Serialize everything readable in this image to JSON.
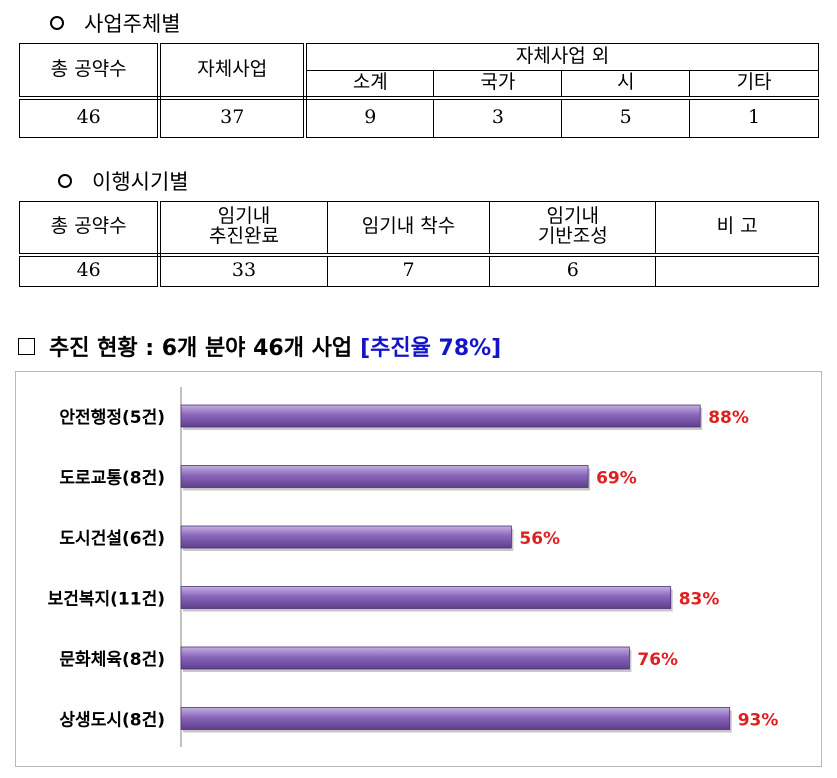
{
  "section_by_entity": {
    "heading": "사업주체별",
    "headers": {
      "total": "총 공약수",
      "own": "자체사업",
      "other_group": "자체사업 외",
      "subtotal": "소계",
      "national": "국가",
      "city": "시",
      "etc": "기타"
    },
    "values": {
      "total": "46",
      "own": "37",
      "subtotal": "9",
      "national": "3",
      "city": "5",
      "etc": "1"
    }
  },
  "section_by_timing": {
    "heading": "이행시기별",
    "headers": {
      "total": "총 공약수",
      "done_line1": "임기내",
      "done_line2": "추진완료",
      "started": "임기내 착수",
      "base_line1": "임기내",
      "base_line2": "기반조성",
      "note": "비  고"
    },
    "values": {
      "total": "46",
      "done": "33",
      "started": "7",
      "base": "6",
      "note": ""
    }
  },
  "progress": {
    "title": "추진 현황 : 6개 분야 46개 사업",
    "rate": "[추진율 78%]"
  },
  "chart_data": {
    "type": "bar",
    "orientation": "horizontal",
    "categories": [
      "안전행정(5건)",
      "도로교통(8건)",
      "도시건설(6건)",
      "보건복지(11건)",
      "문화체육(8건)",
      "상생도시(8건)"
    ],
    "values": [
      88,
      69,
      56,
      83,
      76,
      93
    ],
    "value_labels": [
      "88%",
      "69%",
      "56%",
      "83%",
      "76%",
      "93%"
    ],
    "xlim": [
      0,
      100
    ],
    "bar_color": "#7a55a8",
    "label_color": "#e02020",
    "grid": false
  }
}
